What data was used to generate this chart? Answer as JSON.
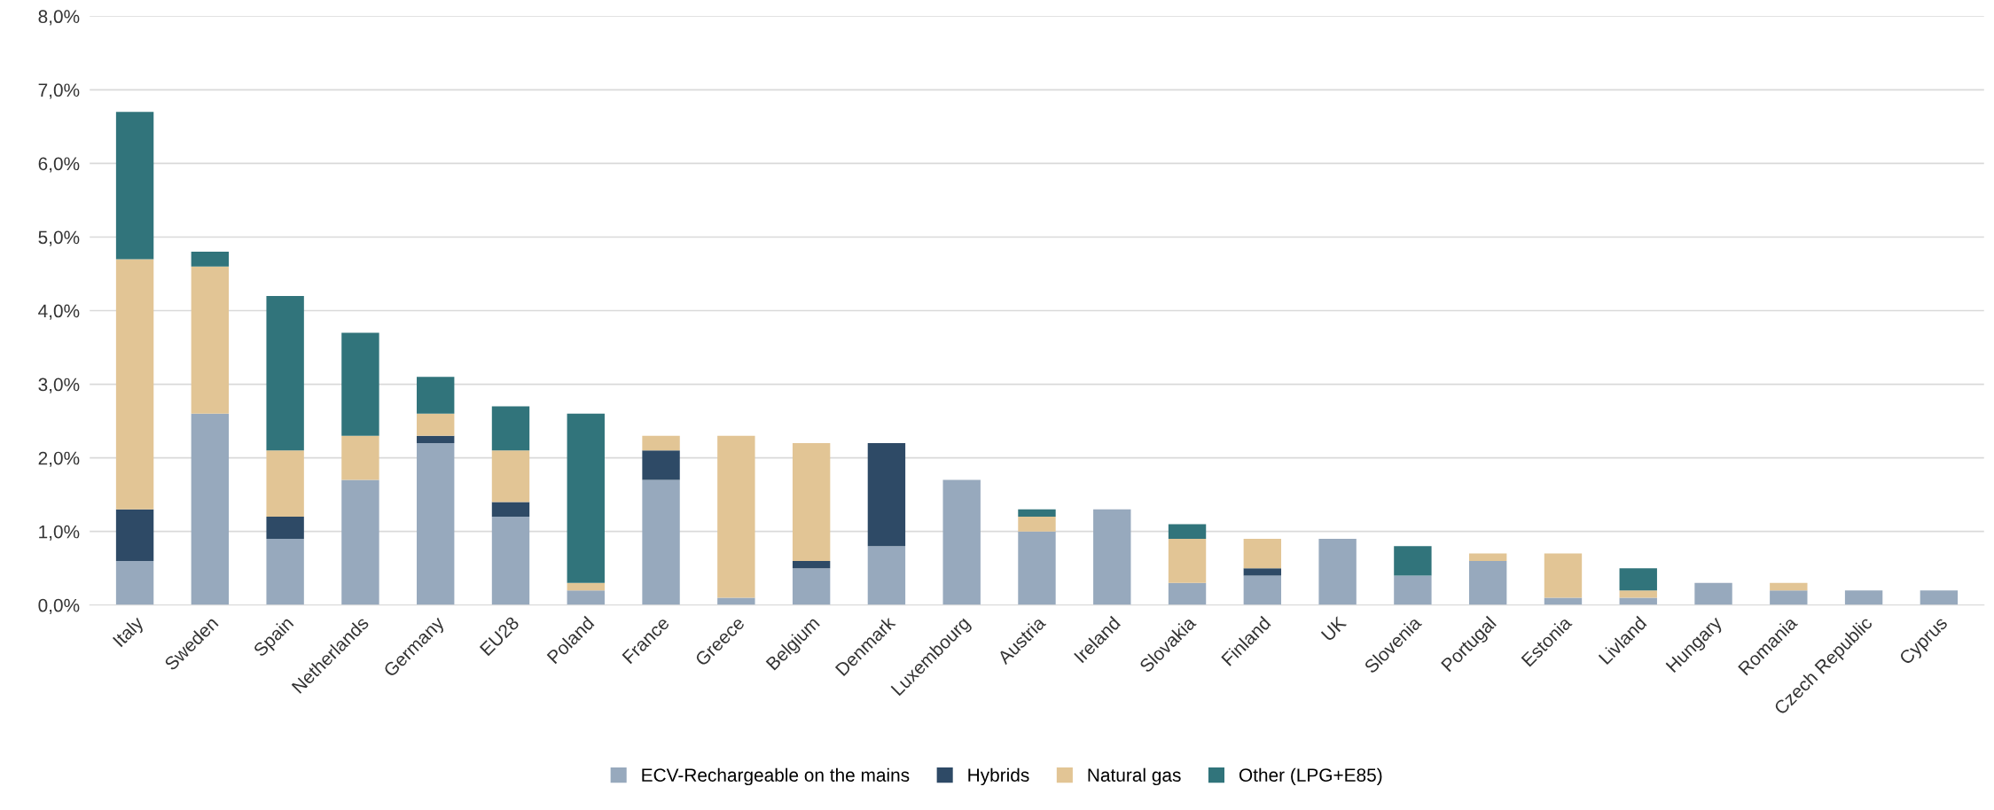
{
  "chart_data": {
    "type": "bar",
    "stacked": true,
    "categories": [
      "Italy",
      "Sweden",
      "Spain",
      "Netherlands",
      "Germany",
      "EU28",
      "Poland",
      "France",
      "Greece",
      "Belgium",
      "Denmark",
      "Luxembourg",
      "Austria",
      "Ireland",
      "Slovakia",
      "Finland",
      "UK",
      "Slovenia",
      "Portugal",
      "Estonia",
      "Livland",
      "Hungary",
      "Romania",
      "Czech Republic",
      "Cyprus"
    ],
    "series": [
      {
        "name": "ECV-Rechargeable on the mains",
        "color": "#97a9bd",
        "values": [
          0.6,
          2.6,
          0.9,
          1.7,
          2.2,
          1.2,
          0.2,
          1.7,
          0.1,
          0.5,
          0.8,
          1.7,
          1.0,
          1.3,
          0.3,
          0.4,
          0.9,
          0.4,
          0.6,
          0.1,
          0.1,
          0.3,
          0.2,
          0.2,
          0.2
        ]
      },
      {
        "name": "Hybrids",
        "color": "#2e4a66",
        "values": [
          0.7,
          0,
          0.3,
          0,
          0.1,
          0.2,
          0,
          0.4,
          0,
          0.1,
          1.4,
          0,
          0,
          0,
          0,
          0.1,
          0,
          0,
          0,
          0,
          0,
          0,
          0,
          0,
          0
        ]
      },
      {
        "name": "Natural gas",
        "color": "#e2c595",
        "values": [
          3.4,
          2.0,
          0.9,
          0.6,
          0.3,
          0.7,
          0.1,
          0.2,
          2.2,
          1.6,
          0,
          0,
          0.2,
          0,
          0.6,
          0.4,
          0,
          0,
          0.1,
          0.6,
          0.1,
          0,
          0.1,
          0,
          0
        ]
      },
      {
        "name": "Other (LPG+E85)",
        "color": "#31747b",
        "values": [
          2.0,
          0.2,
          2.1,
          1.4,
          0.5,
          0.6,
          2.3,
          0,
          0,
          0,
          0,
          0,
          0.1,
          0,
          0.2,
          0,
          0,
          0.4,
          0,
          0,
          0.3,
          0,
          0,
          0,
          0
        ]
      }
    ],
    "ylim": [
      0,
      8
    ],
    "yticks": [
      {
        "value": 0,
        "label": "0,0%"
      },
      {
        "value": 1,
        "label": "1,0%"
      },
      {
        "value": 2,
        "label": "2,0%"
      },
      {
        "value": 3,
        "label": "3,0%"
      },
      {
        "value": 4,
        "label": "4,0%"
      },
      {
        "value": 5,
        "label": "5,0%"
      },
      {
        "value": 6,
        "label": "6,0%"
      },
      {
        "value": 7,
        "label": "7,0%"
      },
      {
        "value": 8,
        "label": "8,0%"
      }
    ],
    "grid": "y",
    "legend": "bottom"
  }
}
